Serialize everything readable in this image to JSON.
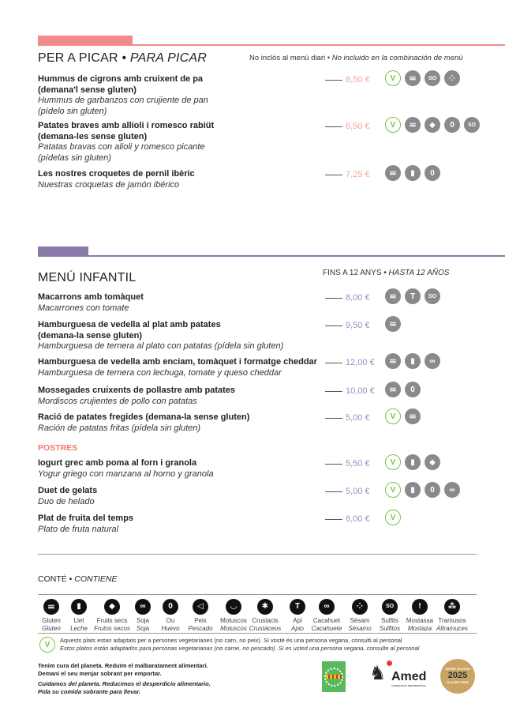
{
  "colors": {
    "picar": "#f28b8b",
    "infantil": "#8a7aaa",
    "price_picar": "#f3a3a3",
    "price_infantil": "#9a8cc4",
    "veg": "#7cc243",
    "postres": "#f07870"
  },
  "picar": {
    "title_ca": "PER A PICAR",
    "title_es": "PARA PICAR",
    "note_ca": "No inclòs al menú diari",
    "note_es": "No incluido en la combinación de menú",
    "items": [
      {
        "ca": [
          "Hummus de cigrons amb cruixent de pa",
          "(demana'l sense gluten)"
        ],
        "es": [
          "Hummus de garbanzos con crujiente de pan",
          "(pídelo sin gluten)"
        ],
        "price": "6,50 €",
        "icons": [
          "veg",
          "gluten",
          "sulphites",
          "sesame"
        ]
      },
      {
        "ca": [
          "Patates braves amb allioli i romesco rabiüt",
          "(demana-les sense gluten)"
        ],
        "es": [
          "Patatas bravas con alioli y romesco picante",
          "(pídelas sin gluten)"
        ],
        "price": "6,50 €",
        "icons": [
          "veg",
          "gluten",
          "nuts",
          "egg",
          "sulphites"
        ]
      },
      {
        "ca": [
          "Les nostres croquetes de pernil ibèric"
        ],
        "es": [
          "Nuestras croquetas de jamón ibérico"
        ],
        "price": "7,25 €",
        "icons": [
          "gluten",
          "milk",
          "egg"
        ]
      }
    ]
  },
  "infantil": {
    "title": "MENÚ INFANTIL",
    "note_ca": "FINS A 12 ANYS",
    "note_es": "HASTA 12 AÑOS",
    "items": [
      {
        "ca": [
          "Macarrons amb tomàquet"
        ],
        "es": [
          "Macarrones con tomate"
        ],
        "price": "8,00 €",
        "icons": [
          "gluten",
          "celery",
          "sulphites"
        ]
      },
      {
        "ca": [
          "Hamburguesa de vedella al plat amb patates",
          "(demana-la sense gluten)"
        ],
        "es": [
          "Hamburguesa de ternera al plato con patatas (pídela sin gluten)"
        ],
        "price": "9,50 €",
        "icons": [
          "gluten"
        ]
      },
      {
        "ca": [
          "Hamburguesa de vedella amb enciam, tomàquet i formatge cheddar"
        ],
        "es": [
          "Hamburguesa de ternera con lechuga, tomate y queso cheddar"
        ],
        "price": "12,00 €",
        "icons": [
          "gluten",
          "milk",
          "soy"
        ]
      },
      {
        "ca": [
          "Mossegades cruixents de pollastre amb patates"
        ],
        "es": [
          "Mordiscos crujientes de pollo con patatas"
        ],
        "price": "10,00 €",
        "icons": [
          "gluten",
          "egg"
        ]
      },
      {
        "ca": [
          "Ració de patates fregides (demana-la sense gluten)"
        ],
        "es": [
          "Ración de patatas fritas (pídela sin gluten)"
        ],
        "price": "5,00 €",
        "icons": [
          "veg",
          "gluten"
        ]
      }
    ],
    "postres_title": "POSTRES",
    "postres": [
      {
        "ca": [
          "Iogurt grec amb poma al forn i granola"
        ],
        "es": [
          "Yogur griego con manzana al horno y granola"
        ],
        "price": "5,50 €",
        "icons": [
          "veg",
          "milk",
          "nuts"
        ]
      },
      {
        "ca": [
          "Duet de gelats"
        ],
        "es": [
          "Duo de helado"
        ],
        "price": "5,00 €",
        "icons": [
          "veg",
          "milk",
          "egg",
          "soy"
        ]
      },
      {
        "ca": [
          "Plat de fruita del temps"
        ],
        "es": [
          "Plato de fruta natural"
        ],
        "price": "6,00 €",
        "icons": [
          "veg"
        ]
      }
    ]
  },
  "legend": {
    "title_ca": "CONTÉ",
    "title_es": "CONTIENE",
    "allergens": [
      {
        "icon": "gluten",
        "ca": "Gluten",
        "es": "Gluten"
      },
      {
        "icon": "milk",
        "ca": "Llet",
        "es": "Leche"
      },
      {
        "icon": "nuts",
        "ca": "Fruits secs",
        "es": "Frutos secos"
      },
      {
        "icon": "soy",
        "ca": "Soja",
        "es": "Soja"
      },
      {
        "icon": "egg",
        "ca": "Ou",
        "es": "Huevo"
      },
      {
        "icon": "fish",
        "ca": "Peix",
        "es": "Pescado"
      },
      {
        "icon": "molluscs",
        "ca": "Moluscos",
        "es": "Moluscos"
      },
      {
        "icon": "crustaceans",
        "ca": "Crustacis",
        "es": "Crustáceos"
      },
      {
        "icon": "celery",
        "ca": "Api",
        "es": "Apio"
      },
      {
        "icon": "peanut",
        "ca": "Cacahuet",
        "es": "Cacahuete"
      },
      {
        "icon": "sesame",
        "ca": "Sèsam",
        "es": "Sésamo"
      },
      {
        "icon": "sulphites",
        "ca": "Sulfits",
        "es": "Sulfitos"
      },
      {
        "icon": "mustard",
        "ca": "Mostassa",
        "es": "Mostaza"
      },
      {
        "icon": "lupin",
        "ca": "Tramusos",
        "es": "Altramuces"
      }
    ],
    "veg_ca": "Aquests plats estan adaptats per a persones vegetarianes (no carn, no peix). Si vostè és una persona vegana, consulti al personal",
    "veg_es": "Estos platos están adaptados para personas vegetarianas (no carne, no pescado). Si es usted una persona vegana, consulte al personal"
  },
  "footer": {
    "ca": [
      "Tenim cura del planeta. Reduïm el malbaratament alimentari.",
      "Demani el seu menjar sobrant per emportar."
    ],
    "es": [
      "Cuidamos del planeta. Reducimos el desperdicio alimentario.",
      "Pida su comida sobrante para llevar."
    ],
    "logos": {
      "amed": "Amed",
      "amed_sub": "ALIMENTACIÓ MEDITERRÀNIA",
      "gluten_top": "SENSE GLUTEN",
      "gluten_year": "2025",
      "gluten_bottom": "GLUTEN FREE"
    }
  }
}
